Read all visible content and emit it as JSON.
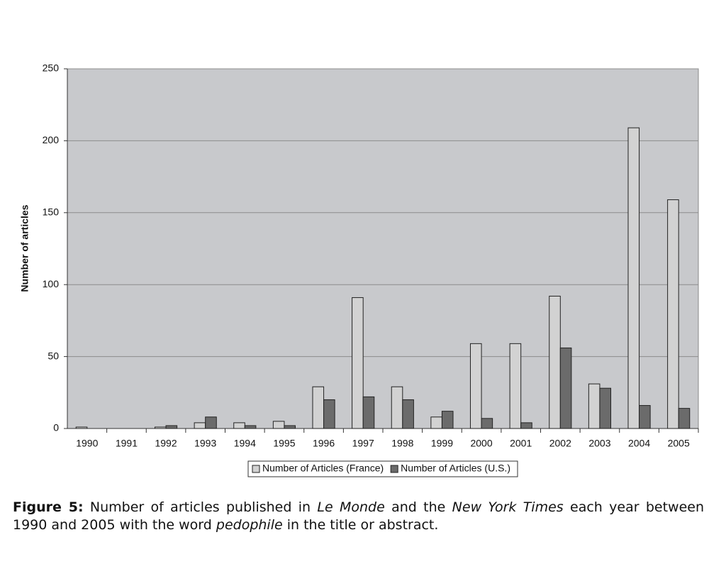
{
  "chart_data": {
    "type": "bar",
    "y_label": "Number of articles",
    "categories": [
      "1990",
      "1991",
      "1992",
      "1993",
      "1994",
      "1995",
      "1996",
      "1997",
      "1998",
      "1999",
      "2000",
      "2001",
      "2002",
      "2003",
      "2004",
      "2005"
    ],
    "series": [
      {
        "name": "Number of Articles (France)",
        "color": "#d2d2d2",
        "values": [
          1,
          0,
          1,
          4,
          4,
          5,
          29,
          91,
          29,
          8,
          59,
          59,
          92,
          31,
          209,
          159
        ]
      },
      {
        "name": "Number of Articles (U.S.)",
        "color": "#6b6b6b",
        "values": [
          0,
          0,
          2,
          8,
          2,
          2,
          20,
          22,
          20,
          12,
          7,
          4,
          56,
          28,
          16,
          14
        ]
      }
    ],
    "ylim": [
      0,
      250
    ],
    "yticks": [
      0,
      50,
      100,
      150,
      200,
      250
    ],
    "grid": true,
    "legend": "bottom"
  },
  "caption": {
    "label": "Figure 5:",
    "segments": [
      " Number of articles published in ",
      "Le Monde",
      " and the ",
      "New York Times",
      " each year between 1990 and 2005 with the word ",
      "pedophile",
      " in the title or abstract."
    ]
  }
}
